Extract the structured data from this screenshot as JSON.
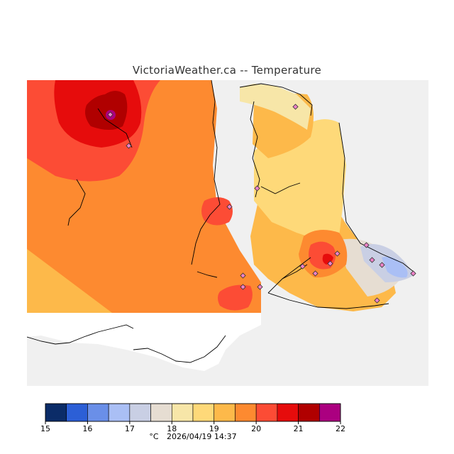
{
  "title": "VictoriaWeather.ca -- Temperature",
  "unit": "°C",
  "timestamp": "2026/04/19 14:37",
  "colors": {
    "land_gray": "#f0f0f0",
    "coast": "#000000"
  },
  "legend": {
    "ticks": [
      "15",
      "16",
      "17",
      "18",
      "19",
      "20",
      "21",
      "22"
    ],
    "bins": [
      {
        "from": 15.0,
        "to": 15.5,
        "color": "#0b2c68"
      },
      {
        "from": 15.5,
        "to": 16.0,
        "color": "#2c5fd6"
      },
      {
        "from": 16.0,
        "to": 16.5,
        "color": "#6a8fe8"
      },
      {
        "from": 16.5,
        "to": 17.0,
        "color": "#aabff5"
      },
      {
        "from": 17.0,
        "to": 17.5,
        "color": "#c9cfe4"
      },
      {
        "from": 17.5,
        "to": 18.0,
        "color": "#e6ddd2"
      },
      {
        "from": 18.0,
        "to": 18.5,
        "color": "#f7e6a8"
      },
      {
        "from": 18.5,
        "to": 19.0,
        "color": "#fed979"
      },
      {
        "from": 19.0,
        "to": 19.5,
        "color": "#fdb94a"
      },
      {
        "from": 19.5,
        "to": 20.0,
        "color": "#fd8a30"
      },
      {
        "from": 20.0,
        "to": 20.5,
        "color": "#fc4c35"
      },
      {
        "from": 20.5,
        "to": 21.0,
        "color": "#e60c0c"
      },
      {
        "from": 21.0,
        "to": 21.5,
        "color": "#b00000"
      },
      {
        "from": 21.5,
        "to": 22.0,
        "color": "#ab0080"
      }
    ]
  },
  "stations_count": 17
}
